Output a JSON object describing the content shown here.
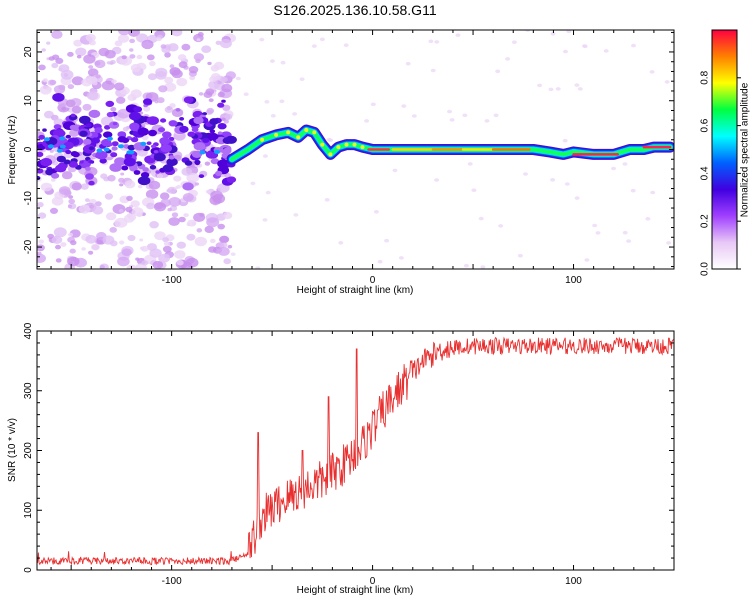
{
  "title": "S126.2025.136.10.58.G11",
  "chart_data": [
    {
      "type": "heatmap",
      "xlabel": "Height of straight line (km)",
      "ylabel": "Frequency (Hz)",
      "xlim": [
        -167,
        150
      ],
      "ylim": [
        -24.5,
        24.5
      ],
      "xticks": [
        -100,
        0,
        100
      ],
      "yticks": [
        -20,
        -10,
        0,
        10,
        20
      ],
      "colorbar": {
        "label": "Normalized spectral amplitude",
        "range": [
          0,
          1
        ],
        "ticks": [
          "0.0",
          "0.2",
          "0.4",
          "0.6",
          "0.8"
        ],
        "tick_values": [
          0.0,
          0.2,
          0.4,
          0.6,
          0.8
        ],
        "colormap": [
          "#ffffff",
          "#e8c8f5",
          "#a040ff",
          "#4000e0",
          "#0060ff",
          "#00ffff",
          "#00ff40",
          "#ffff00",
          "#ff8000",
          "#ff0040"
        ]
      },
      "ridge": {
        "x": [
          -70,
          -62,
          -55,
          -48,
          -42,
          -37,
          -33,
          -29,
          -25,
          -21,
          -17,
          -13,
          -9,
          -5,
          0,
          20,
          40,
          60,
          80,
          88,
          95,
          100,
          110,
          120,
          128,
          135,
          140,
          148
        ],
        "y": [
          -2,
          0,
          2,
          3,
          3.5,
          2.5,
          4,
          3.5,
          1,
          -1,
          0.5,
          1,
          1,
          0.5,
          0,
          0,
          0,
          0,
          0,
          -0.5,
          -1,
          -0.5,
          -1,
          -1,
          0,
          0,
          0.5,
          0.5
        ]
      }
    },
    {
      "type": "line",
      "xlabel": "Height of straight line (km)",
      "ylabel": "SNR (10 * v/v)",
      "xlim": [
        -167,
        150
      ],
      "ylim": [
        0,
        400
      ],
      "xticks": [
        -100,
        0,
        100
      ],
      "yticks": [
        0,
        100,
        200,
        300,
        400
      ],
      "color": "#e83030",
      "profile": {
        "x": [
          -167,
          -70,
          -62,
          -55,
          -45,
          -35,
          -25,
          -15,
          -5,
          5,
          15,
          25,
          35,
          50,
          150
        ],
        "y": [
          15,
          15,
          30,
          90,
          115,
          135,
          150,
          175,
          210,
          265,
          310,
          350,
          370,
          375,
          375
        ]
      },
      "spikes": [
        {
          "x": -57,
          "y": 230
        },
        {
          "x": -35,
          "y": 200
        },
        {
          "x": -22,
          "y": 290
        },
        {
          "x": -8,
          "y": 370
        }
      ]
    }
  ]
}
